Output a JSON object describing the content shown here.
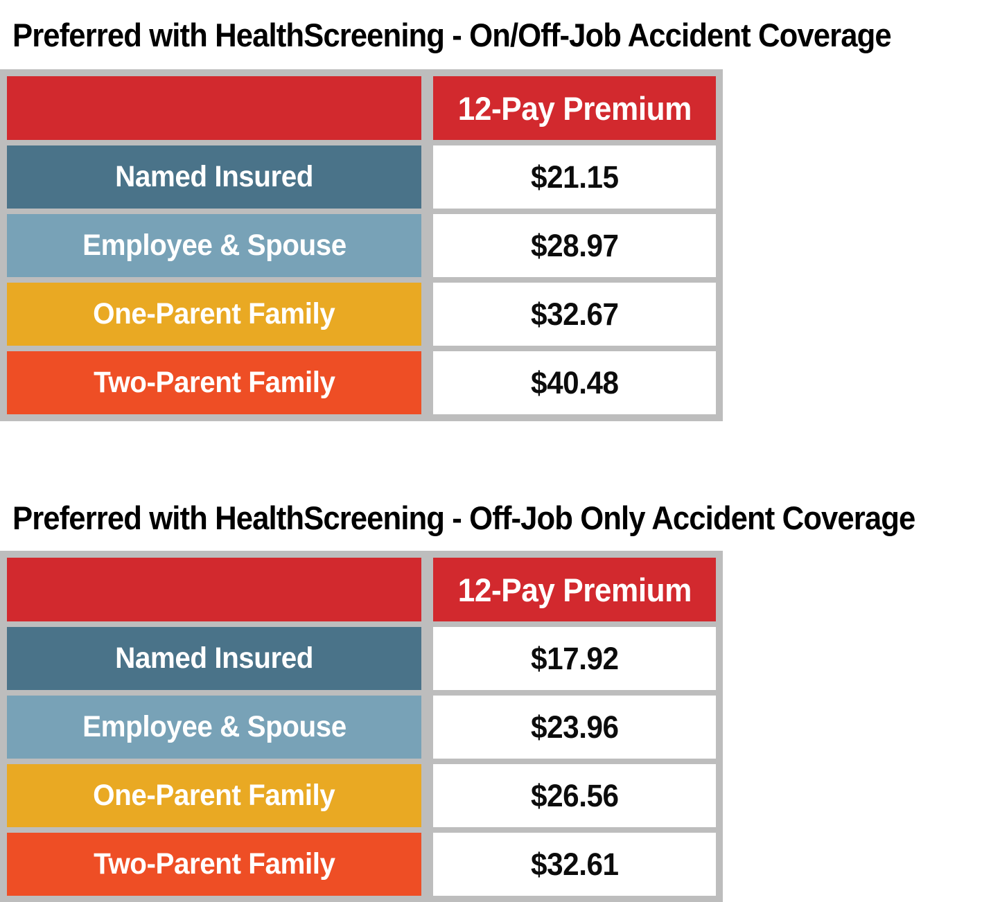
{
  "colors": {
    "frame_gray": "#BDBDBD",
    "header_red": "#D2292E",
    "row_dark_blue": "#4A7389",
    "row_light_blue": "#78A2B7",
    "row_gold": "#E9A923",
    "row_orange": "#EE4E25",
    "value_cell_bg": "#FFFFFF",
    "label_text": "#FFFFFF",
    "value_text": "#0C0C0C",
    "title_text": "#000000"
  },
  "tables": [
    {
      "title": "Preferred with HealthScreening - On/Off-Job Accident Coverage",
      "header": {
        "spacer": "",
        "premium": "12-Pay Premium"
      },
      "rows": [
        {
          "label": "Named Insured",
          "value": "$21.15",
          "color": "#4A7389"
        },
        {
          "label": "Employee & Spouse",
          "value": "$28.97",
          "color": "#78A2B7"
        },
        {
          "label": "One-Parent Family",
          "value": "$32.67",
          "color": "#E9A923"
        },
        {
          "label": "Two-Parent Family",
          "value": "$40.48",
          "color": "#EE4E25"
        }
      ]
    },
    {
      "title": "Preferred with HealthScreening - Off-Job Only Accident Coverage",
      "header": {
        "spacer": "",
        "premium": "12-Pay Premium"
      },
      "rows": [
        {
          "label": "Named Insured",
          "value": "$17.92",
          "color": "#4A7389"
        },
        {
          "label": "Employee & Spouse",
          "value": "$23.96",
          "color": "#78A2B7"
        },
        {
          "label": "One-Parent Family",
          "value": "$26.56",
          "color": "#E9A923"
        },
        {
          "label": "Two-Parent Family",
          "value": "$32.61",
          "color": "#EE4E25"
        }
      ]
    }
  ]
}
